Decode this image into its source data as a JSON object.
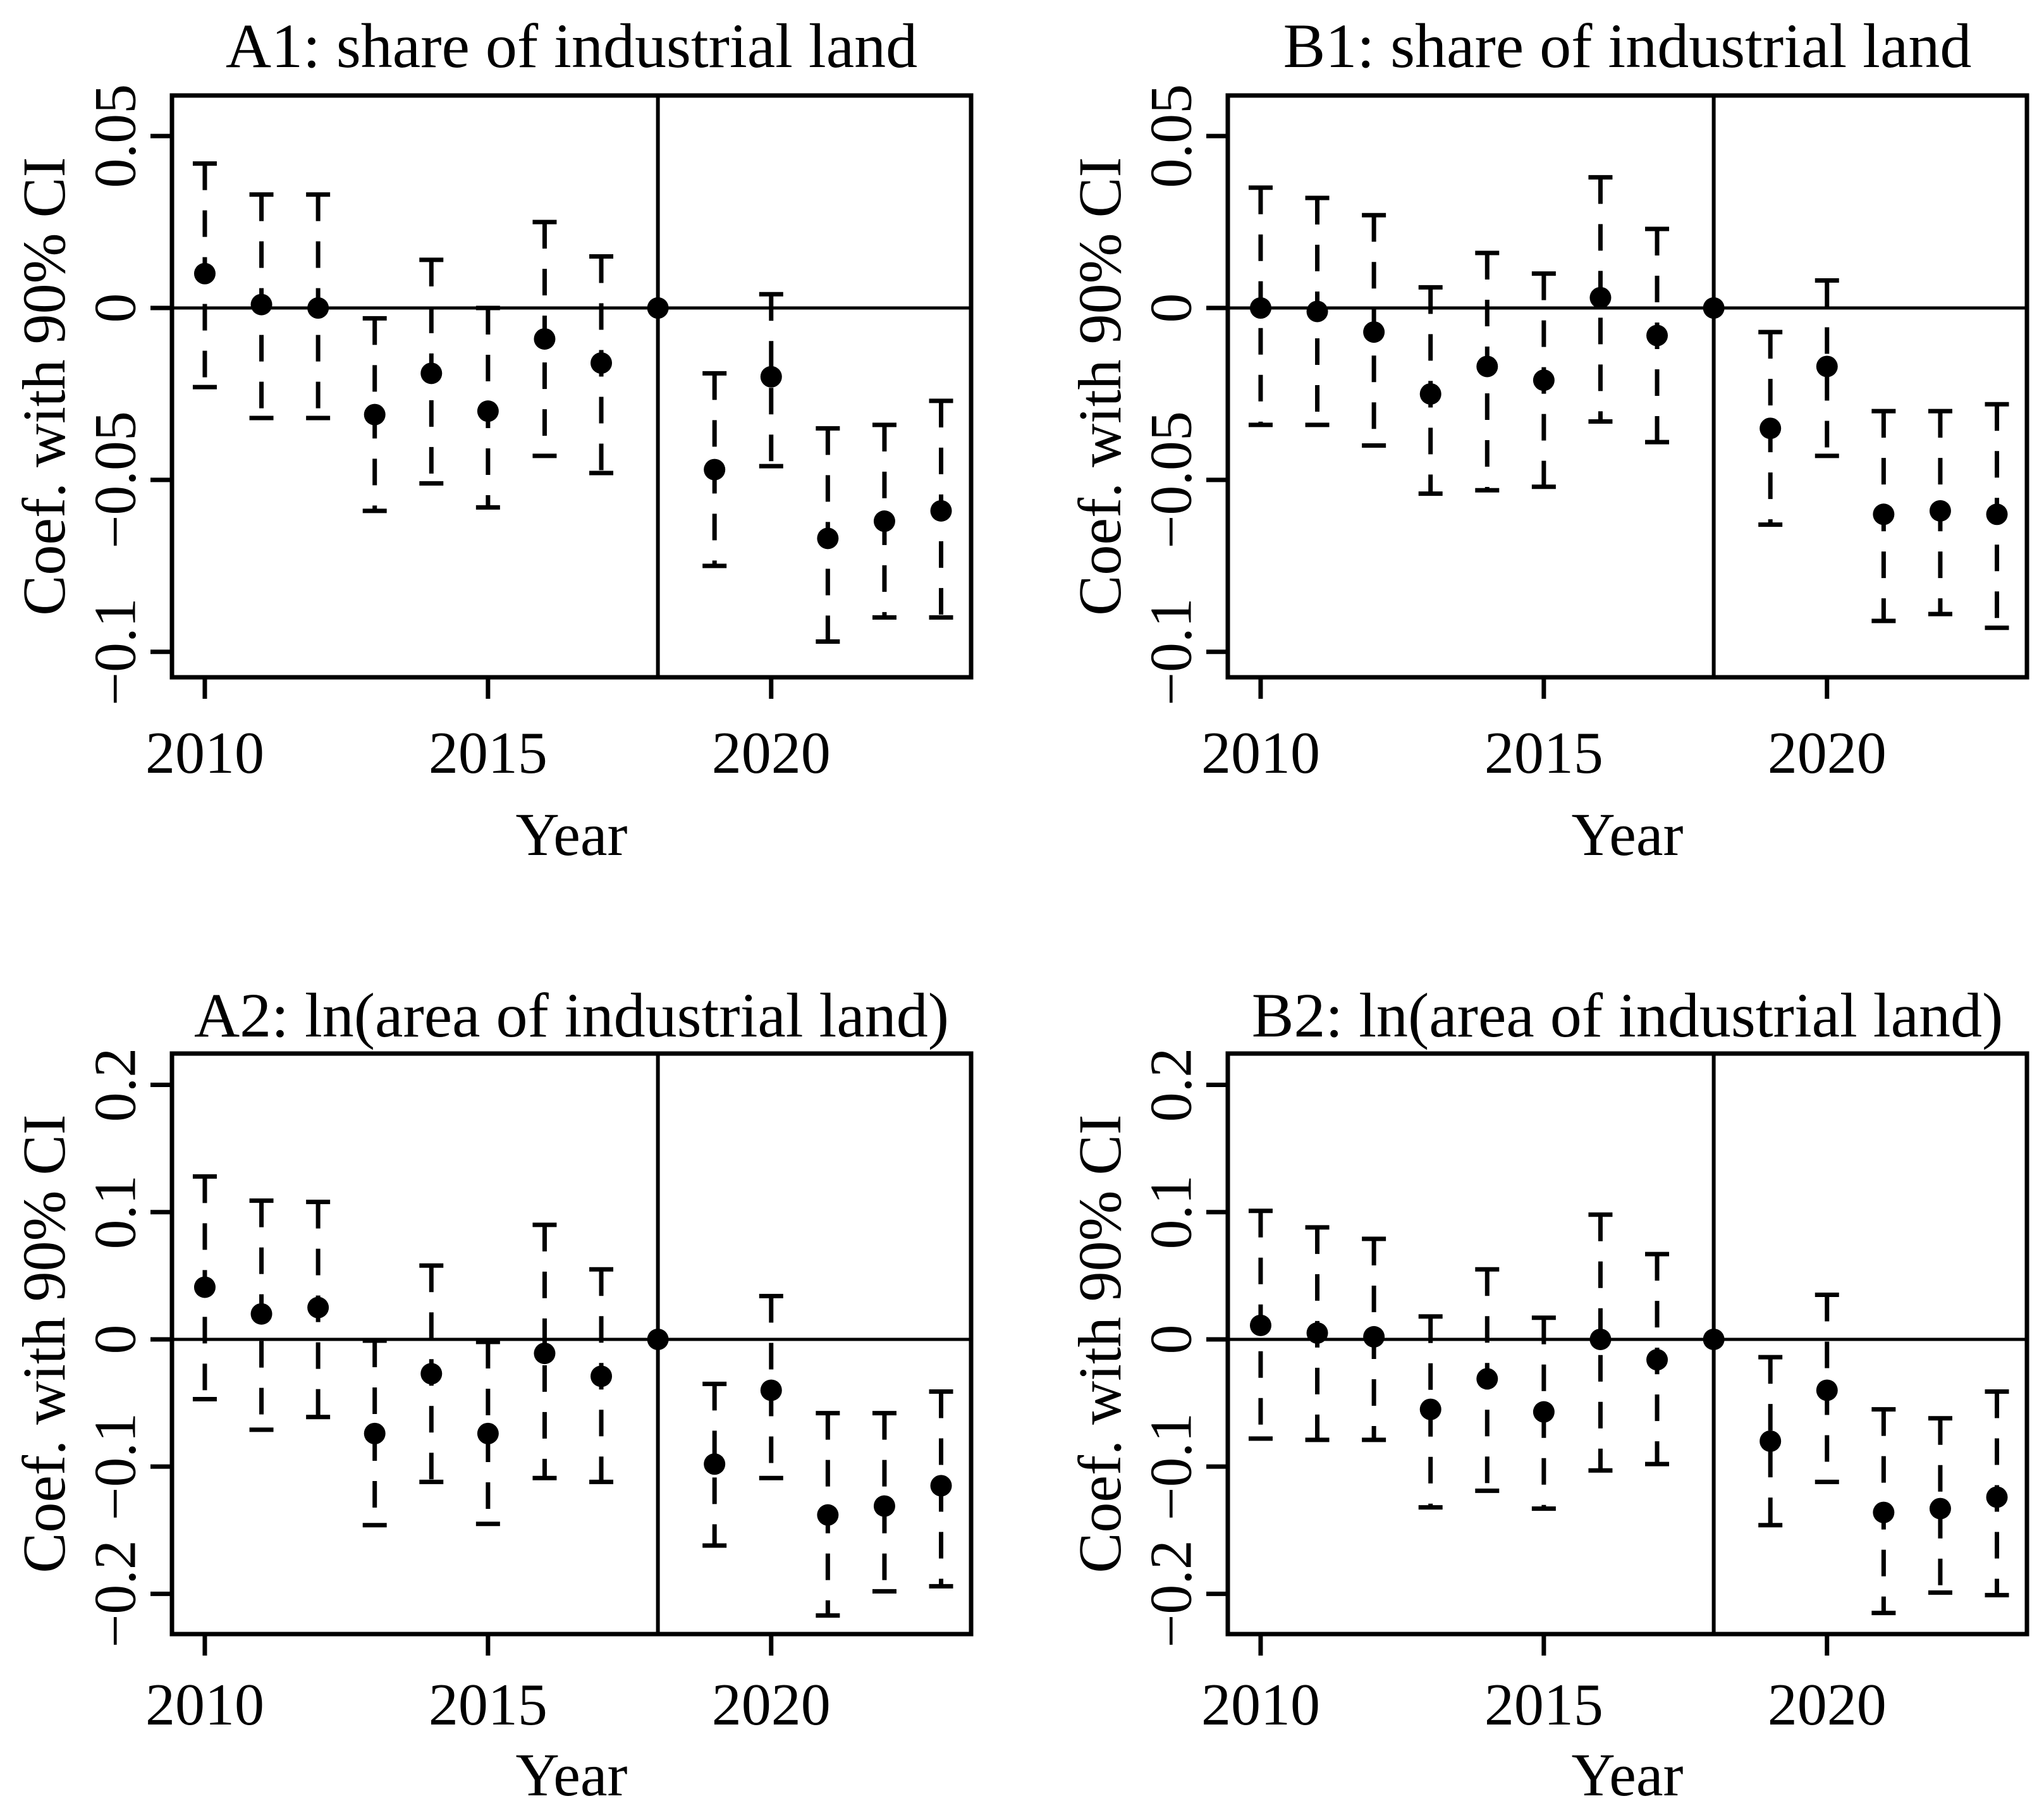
{
  "figure": {
    "background": "#ffffff",
    "ink_color": "#000000",
    "panel_ids": [
      "A1",
      "B1",
      "A2",
      "B2"
    ]
  },
  "chart_data": [
    {
      "id": "A1",
      "type": "scatter",
      "subtype": "coefficient-errorbar",
      "title": "A1: share of industrial land",
      "xlabel": "Year",
      "ylabel": "Coef. with 90% CI",
      "ci_level": "90%",
      "reference_year": 2018,
      "hline_y": 0,
      "vline_x": 2018,
      "grid": false,
      "legend": "none",
      "x": [
        2010,
        2011,
        2012,
        2013,
        2014,
        2015,
        2016,
        2017,
        2018,
        2019,
        2020,
        2021,
        2022,
        2023
      ],
      "series": [
        {
          "name": "coefficient",
          "values": [
            0.01,
            0.001,
            0.0,
            -0.031,
            -0.019,
            -0.03,
            -0.009,
            -0.016,
            0,
            -0.047,
            -0.02,
            -0.067,
            -0.062,
            -0.059
          ]
        },
        {
          "name": "ci_lower",
          "values": [
            -0.023,
            -0.032,
            -0.032,
            -0.059,
            -0.051,
            -0.058,
            -0.043,
            -0.048,
            null,
            -0.075,
            -0.046,
            -0.097,
            -0.09,
            -0.09
          ]
        },
        {
          "name": "ci_upper",
          "values": [
            0.042,
            0.033,
            0.033,
            -0.003,
            0.014,
            0.0,
            0.025,
            0.015,
            null,
            -0.019,
            0.004,
            -0.035,
            -0.034,
            -0.027
          ]
        }
      ],
      "xticks": {
        "values": [
          2010,
          2015,
          2020
        ],
        "labels": [
          "2010",
          "2015",
          "2020"
        ]
      },
      "yticks": {
        "values": [
          0.05,
          0,
          -0.05,
          -0.1
        ],
        "labels": [
          "0.05",
          "0",
          "−0.05",
          "−0.1"
        ]
      },
      "xlim": [
        2009.42,
        2023.53
      ],
      "ylim": [
        -0.1074,
        0.0618
      ]
    },
    {
      "id": "B1",
      "type": "scatter",
      "subtype": "coefficient-errorbar",
      "title": "B1: share of industrial land",
      "xlabel": "Year",
      "ylabel": "Coef. with 90% CI",
      "ci_level": "90%",
      "reference_year": 2018,
      "hline_y": 0,
      "vline_x": 2018,
      "grid": false,
      "legend": "none",
      "x": [
        2010,
        2011,
        2012,
        2013,
        2014,
        2015,
        2016,
        2017,
        2018,
        2019,
        2020,
        2021,
        2022,
        2023
      ],
      "series": [
        {
          "name": "coefficient",
          "values": [
            0.0,
            -0.001,
            -0.007,
            -0.025,
            -0.017,
            -0.021,
            0.003,
            -0.008,
            0,
            -0.035,
            -0.017,
            -0.06,
            -0.059,
            -0.06
          ]
        },
        {
          "name": "ci_lower",
          "values": [
            -0.034,
            -0.034,
            -0.04,
            -0.054,
            -0.053,
            -0.052,
            -0.033,
            -0.039,
            null,
            -0.063,
            -0.043,
            -0.091,
            -0.089,
            -0.093
          ]
        },
        {
          "name": "ci_upper",
          "values": [
            0.035,
            0.032,
            0.027,
            0.006,
            0.016,
            0.01,
            0.038,
            0.023,
            null,
            -0.007,
            0.008,
            -0.03,
            -0.03,
            -0.028
          ]
        }
      ],
      "xticks": {
        "values": [
          2010,
          2015,
          2020
        ],
        "labels": [
          "2010",
          "2015",
          "2020"
        ]
      },
      "yticks": {
        "values": [
          0.05,
          0,
          -0.05,
          -0.1
        ],
        "labels": [
          "0.05",
          "0",
          "−0.05",
          "−0.1"
        ]
      },
      "xlim": [
        2009.42,
        2023.53
      ],
      "ylim": [
        -0.1074,
        0.0618
      ]
    },
    {
      "id": "A2",
      "type": "scatter",
      "subtype": "coefficient-errorbar",
      "title": "A2: ln(area of industrial land)",
      "xlabel": "Year",
      "ylabel": "Coef. with 90% CI",
      "ci_level": "90%",
      "reference_year": 2018,
      "hline_y": 0,
      "vline_x": 2018,
      "grid": false,
      "legend": "none",
      "x": [
        2010,
        2011,
        2012,
        2013,
        2014,
        2015,
        2016,
        2017,
        2018,
        2019,
        2020,
        2021,
        2022,
        2023
      ],
      "series": [
        {
          "name": "coefficient",
          "values": [
            0.041,
            0.02,
            0.025,
            -0.074,
            -0.027,
            -0.074,
            -0.011,
            -0.029,
            0,
            -0.098,
            -0.04,
            -0.138,
            -0.131,
            -0.115
          ]
        },
        {
          "name": "ci_lower",
          "values": [
            -0.047,
            -0.071,
            -0.061,
            -0.146,
            -0.112,
            -0.145,
            -0.109,
            -0.112,
            null,
            -0.162,
            -0.109,
            -0.217,
            -0.198,
            -0.194
          ]
        },
        {
          "name": "ci_upper",
          "values": [
            0.128,
            0.109,
            0.108,
            -0.001,
            0.058,
            -0.002,
            0.09,
            0.055,
            null,
            -0.035,
            0.034,
            -0.058,
            -0.058,
            -0.041
          ]
        }
      ],
      "xticks": {
        "values": [
          2010,
          2015,
          2020
        ],
        "labels": [
          "2010",
          "2015",
          "2020"
        ]
      },
      "yticks": {
        "values": [
          0.2,
          0.1,
          0,
          -0.1,
          -0.2
        ],
        "labels": [
          "0.2",
          "0.1",
          "0",
          "−0.1",
          "−0.2"
        ]
      },
      "xlim": [
        2009.42,
        2023.53
      ],
      "ylim": [
        -0.2316,
        0.2246
      ]
    },
    {
      "id": "B2",
      "type": "scatter",
      "subtype": "coefficient-errorbar",
      "title": "B2: ln(area of industrial land)",
      "xlabel": "Year",
      "ylabel": "Coef. with 90% CI",
      "ci_level": "90%",
      "reference_year": 2018,
      "hline_y": 0,
      "vline_x": 2018,
      "grid": false,
      "legend": "none",
      "x": [
        2010,
        2011,
        2012,
        2013,
        2014,
        2015,
        2016,
        2017,
        2018,
        2019,
        2020,
        2021,
        2022,
        2023
      ],
      "series": [
        {
          "name": "coefficient",
          "values": [
            0.011,
            0.005,
            0.002,
            -0.055,
            -0.031,
            -0.057,
            0.0,
            -0.016,
            0,
            -0.08,
            -0.04,
            -0.136,
            -0.133,
            -0.124
          ]
        },
        {
          "name": "ci_lower",
          "values": [
            -0.078,
            -0.079,
            -0.079,
            -0.132,
            -0.119,
            -0.133,
            -0.103,
            -0.098,
            null,
            -0.146,
            -0.112,
            -0.215,
            -0.199,
            -0.201
          ]
        },
        {
          "name": "ci_upper",
          "values": [
            0.101,
            0.088,
            0.079,
            0.018,
            0.055,
            0.017,
            0.098,
            0.067,
            null,
            -0.014,
            0.035,
            -0.055,
            -0.062,
            -0.041
          ]
        }
      ],
      "xticks": {
        "values": [
          2010,
          2015,
          2020
        ],
        "labels": [
          "2010",
          "2015",
          "2020"
        ]
      },
      "yticks": {
        "values": [
          0.2,
          0.1,
          0,
          -0.1,
          -0.2
        ],
        "labels": [
          "0.2",
          "0.1",
          "0",
          "−0.1",
          "−0.2"
        ]
      },
      "xlim": [
        2009.42,
        2023.53
      ],
      "ylim": [
        -0.2316,
        0.2246
      ]
    }
  ]
}
